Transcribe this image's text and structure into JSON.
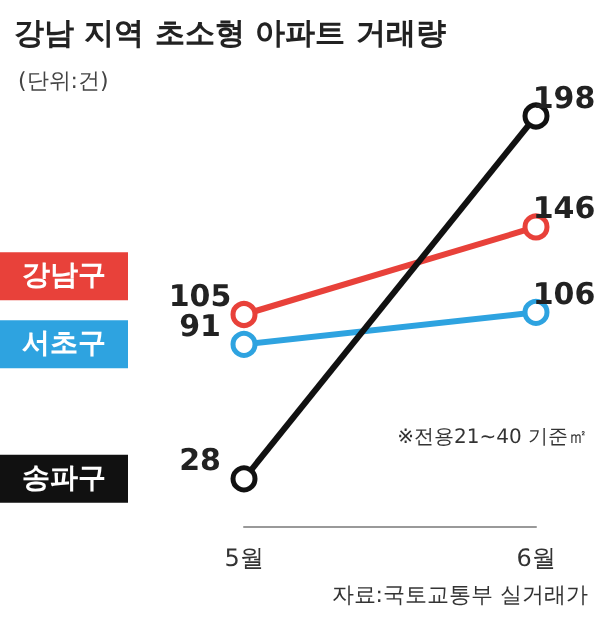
{
  "chart_data": {
    "type": "line",
    "title": "강남 지역 초소형 아파트 거래량",
    "subtitle": "(단위:건)",
    "categories": [
      "5월",
      "6월"
    ],
    "series": [
      {
        "name": "강남구",
        "color": "#e8413a",
        "values": [
          105,
          146
        ]
      },
      {
        "name": "서초구",
        "color": "#2ea3e0",
        "values": [
          91,
          106
        ]
      },
      {
        "name": "송파구",
        "color": "#111111",
        "values": [
          28,
          198
        ]
      }
    ],
    "data_labels": true,
    "marker": "circle",
    "legend": false,
    "grid": false,
    "annotations": [
      "※전용21~40 기준㎡",
      "자료:국토교통부 실거래가"
    ]
  }
}
